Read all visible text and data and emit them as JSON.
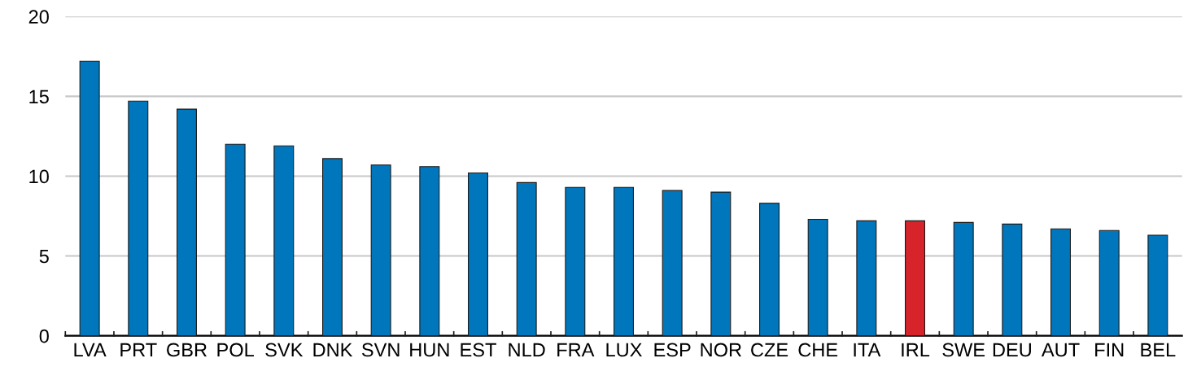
{
  "chart_data": {
    "type": "bar",
    "categories": [
      "LVA",
      "PRT",
      "GBR",
      "POL",
      "SVK",
      "DNK",
      "SVN",
      "HUN",
      "EST",
      "NLD",
      "FRA",
      "LUX",
      "ESP",
      "NOR",
      "CZE",
      "CHE",
      "ITA",
      "IRL",
      "SWE",
      "DEU",
      "AUT",
      "FIN",
      "BEL"
    ],
    "values": [
      17.2,
      14.7,
      14.2,
      12.0,
      11.9,
      11.1,
      10.7,
      10.6,
      10.2,
      9.6,
      9.3,
      9.3,
      9.1,
      9.0,
      8.3,
      7.3,
      7.2,
      7.2,
      7.1,
      7.0,
      6.7,
      6.6,
      6.3
    ],
    "colors": [
      "#0077bd",
      "#0077bd",
      "#0077bd",
      "#0077bd",
      "#0077bd",
      "#0077bd",
      "#0077bd",
      "#0077bd",
      "#0077bd",
      "#0077bd",
      "#0077bd",
      "#0077bd",
      "#0077bd",
      "#0077bd",
      "#0077bd",
      "#0077bd",
      "#0077bd",
      "#d7242a",
      "#0077bd",
      "#0077bd",
      "#0077bd",
      "#0077bd",
      "#0077bd"
    ],
    "ylim": [
      0,
      20
    ],
    "yticks": [
      0,
      5,
      10,
      15,
      20
    ],
    "grid": "y",
    "legend": false
  }
}
